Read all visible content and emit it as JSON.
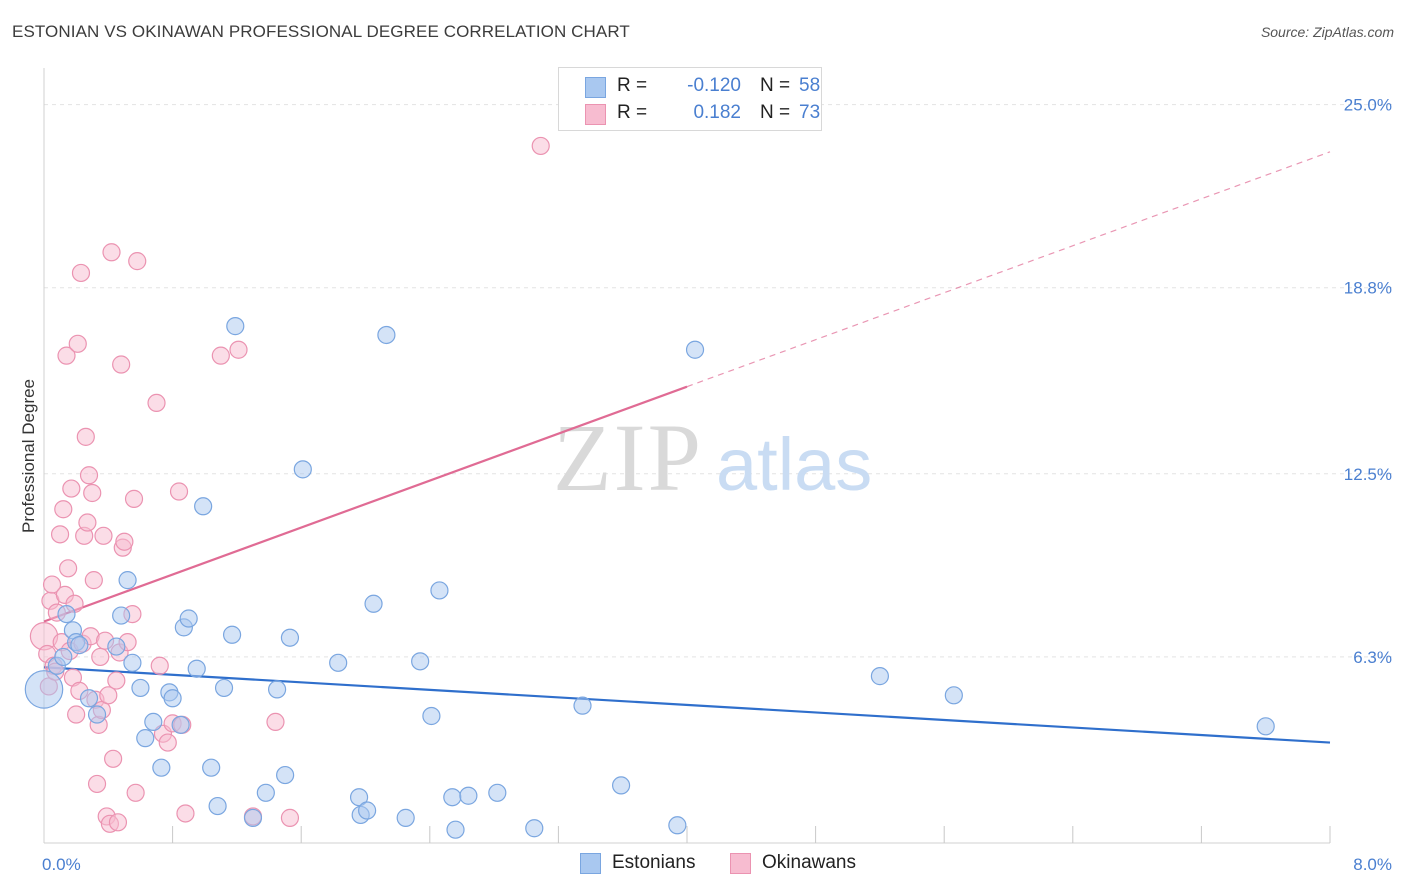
{
  "title": "ESTONIAN VS OKINAWAN PROFESSIONAL DEGREE CORRELATION CHART",
  "source": "Source: ZipAtlas.com",
  "watermark": {
    "zip": "ZIP",
    "atlas": "atlas"
  },
  "legend": {
    "r_label": "R =",
    "n_label": "N =",
    "series": [
      {
        "name": "Estonians",
        "r": "-0.120",
        "n": "58"
      },
      {
        "name": "Okinawans",
        "r": "0.182",
        "n": "73"
      }
    ]
  },
  "colors": {
    "estonian_fill": "#a9c8f0",
    "estonian_stroke": "#7aa6e0",
    "estonian_line": "#2f6fcc",
    "okinawan_fill": "#f7bcd0",
    "okinawan_stroke": "#eb93b1",
    "okinawan_line": "#e06b94",
    "axis_label": "#4a7fd0"
  },
  "chart_data": {
    "type": "scatter",
    "title": "ESTONIAN VS OKINAWAN PROFESSIONAL DEGREE CORRELATION CHART",
    "xlabel": "",
    "ylabel": "Professional Degree",
    "xlim": [
      0,
      8
    ],
    "ylim": [
      0,
      25.9
    ],
    "x_tick_labels": [
      {
        "value": 0,
        "label": "0.0%"
      },
      {
        "value": 8,
        "label": "8.0%"
      }
    ],
    "y_tick_labels": [
      {
        "value": 6.3,
        "label": "6.3%"
      },
      {
        "value": 12.5,
        "label": "12.5%"
      },
      {
        "value": 18.8,
        "label": "18.8%"
      },
      {
        "value": 25.0,
        "label": "25.0%"
      }
    ],
    "x_minor_ticks": [
      0.8,
      1.6,
      2.4,
      3.2,
      4.0,
      4.8,
      5.6,
      6.4,
      7.2,
      8.0
    ],
    "grid": true,
    "series": [
      {
        "name": "Estonians",
        "trend": {
          "x0": 0,
          "y0": 5.95,
          "x1": 8,
          "y1": 3.4,
          "dashed_to": null
        },
        "points": [
          [
            0.0,
            5.2,
            2.2
          ],
          [
            0.08,
            6.0,
            1
          ],
          [
            0.12,
            6.3,
            1
          ],
          [
            0.14,
            7.75,
            1
          ],
          [
            0.18,
            7.2,
            1
          ],
          [
            0.2,
            6.8,
            1
          ],
          [
            0.22,
            6.7,
            1
          ],
          [
            0.28,
            4.9,
            1
          ],
          [
            0.33,
            4.35,
            1
          ],
          [
            0.45,
            6.65,
            1
          ],
          [
            0.48,
            7.7,
            1
          ],
          [
            0.52,
            8.9,
            1
          ],
          [
            0.55,
            6.1,
            1
          ],
          [
            0.6,
            5.25,
            1
          ],
          [
            0.63,
            3.55,
            1
          ],
          [
            0.68,
            4.1,
            1
          ],
          [
            0.73,
            2.55,
            1
          ],
          [
            0.78,
            5.1,
            1
          ],
          [
            0.8,
            4.9,
            1
          ],
          [
            0.85,
            4.0,
            1
          ],
          [
            0.87,
            7.3,
            1
          ],
          [
            0.9,
            7.6,
            1
          ],
          [
            0.95,
            5.9,
            1
          ],
          [
            0.99,
            11.4,
            1
          ],
          [
            1.04,
            2.55,
            1
          ],
          [
            1.08,
            1.25,
            1
          ],
          [
            1.12,
            5.25,
            1
          ],
          [
            1.17,
            7.05,
            1
          ],
          [
            1.19,
            17.5,
            1
          ],
          [
            1.3,
            0.85,
            1
          ],
          [
            1.38,
            1.7,
            1
          ],
          [
            1.45,
            5.2,
            1
          ],
          [
            1.5,
            2.3,
            1
          ],
          [
            1.53,
            6.95,
            1
          ],
          [
            1.61,
            12.65,
            1
          ],
          [
            1.83,
            6.1,
            1
          ],
          [
            1.96,
            1.55,
            1
          ],
          [
            1.97,
            0.95,
            1
          ],
          [
            2.01,
            1.1,
            1
          ],
          [
            2.05,
            8.1,
            1
          ],
          [
            2.13,
            17.2,
            1
          ],
          [
            2.25,
            0.85,
            1
          ],
          [
            2.34,
            6.15,
            1
          ],
          [
            2.41,
            4.3,
            1
          ],
          [
            2.46,
            8.55,
            1
          ],
          [
            2.54,
            1.55,
            1
          ],
          [
            2.56,
            0.45,
            1
          ],
          [
            2.64,
            1.6,
            1
          ],
          [
            2.82,
            1.7,
            1
          ],
          [
            3.05,
            0.5,
            1
          ],
          [
            3.35,
            4.65,
            1
          ],
          [
            3.59,
            1.95,
            1
          ],
          [
            3.94,
            0.6,
            1
          ],
          [
            4.05,
            16.7,
            1
          ],
          [
            5.2,
            5.65,
            1
          ],
          [
            5.66,
            5.0,
            1
          ],
          [
            7.6,
            3.95,
            1
          ]
        ]
      },
      {
        "name": "Okinawans",
        "trend": {
          "x0": 0,
          "y0": 7.5,
          "x1": 4.0,
          "y1": 15.45,
          "dashed_to": [
            8.0,
            23.4
          ]
        },
        "points": [
          [
            0.0,
            7.0,
            1.6
          ],
          [
            0.02,
            6.4,
            1
          ],
          [
            0.03,
            5.3,
            1
          ],
          [
            0.04,
            8.2,
            1
          ],
          [
            0.05,
            8.75,
            1
          ],
          [
            0.06,
            6.0,
            1
          ],
          [
            0.07,
            5.8,
            1
          ],
          [
            0.08,
            7.8,
            1
          ],
          [
            0.1,
            10.45,
            1
          ],
          [
            0.11,
            6.8,
            1
          ],
          [
            0.12,
            11.3,
            1
          ],
          [
            0.13,
            8.4,
            1
          ],
          [
            0.14,
            16.5,
            1
          ],
          [
            0.15,
            9.3,
            1
          ],
          [
            0.16,
            6.5,
            1
          ],
          [
            0.17,
            12.0,
            1
          ],
          [
            0.18,
            5.6,
            1
          ],
          [
            0.19,
            8.1,
            1
          ],
          [
            0.2,
            4.35,
            1
          ],
          [
            0.21,
            16.9,
            1
          ],
          [
            0.22,
            5.15,
            1
          ],
          [
            0.23,
            19.3,
            1
          ],
          [
            0.24,
            6.75,
            1
          ],
          [
            0.25,
            10.4,
            1
          ],
          [
            0.26,
            13.75,
            1
          ],
          [
            0.27,
            10.85,
            1
          ],
          [
            0.28,
            12.45,
            1
          ],
          [
            0.29,
            7.0,
            1
          ],
          [
            0.3,
            11.85,
            1
          ],
          [
            0.31,
            8.9,
            1
          ],
          [
            0.32,
            4.85,
            1
          ],
          [
            0.33,
            2.0,
            1
          ],
          [
            0.34,
            4.0,
            1
          ],
          [
            0.35,
            6.3,
            1
          ],
          [
            0.36,
            4.5,
            1
          ],
          [
            0.37,
            10.4,
            1
          ],
          [
            0.38,
            6.85,
            1
          ],
          [
            0.39,
            0.9,
            1
          ],
          [
            0.4,
            5.0,
            1
          ],
          [
            0.41,
            0.65,
            1
          ],
          [
            0.42,
            20.0,
            1
          ],
          [
            0.43,
            2.85,
            1
          ],
          [
            0.45,
            5.5,
            1
          ],
          [
            0.46,
            0.7,
            1
          ],
          [
            0.47,
            6.45,
            1
          ],
          [
            0.48,
            16.2,
            1
          ],
          [
            0.49,
            10.0,
            1
          ],
          [
            0.5,
            10.2,
            1
          ],
          [
            0.52,
            6.8,
            1
          ],
          [
            0.55,
            7.75,
            1
          ],
          [
            0.56,
            11.65,
            1
          ],
          [
            0.57,
            1.7,
            1
          ],
          [
            0.58,
            19.7,
            1
          ],
          [
            0.7,
            14.9,
            1
          ],
          [
            0.72,
            6.0,
            1
          ],
          [
            0.74,
            3.7,
            1
          ],
          [
            0.77,
            3.4,
            1
          ],
          [
            0.8,
            4.05,
            1
          ],
          [
            0.84,
            11.9,
            1
          ],
          [
            0.86,
            4.0,
            1
          ],
          [
            0.88,
            1.0,
            1
          ],
          [
            1.1,
            16.5,
            1
          ],
          [
            1.3,
            0.9,
            1
          ],
          [
            1.21,
            16.7,
            1
          ],
          [
            1.44,
            4.1,
            1
          ],
          [
            1.53,
            0.85,
            1
          ],
          [
            3.09,
            23.6,
            1
          ]
        ]
      }
    ]
  }
}
